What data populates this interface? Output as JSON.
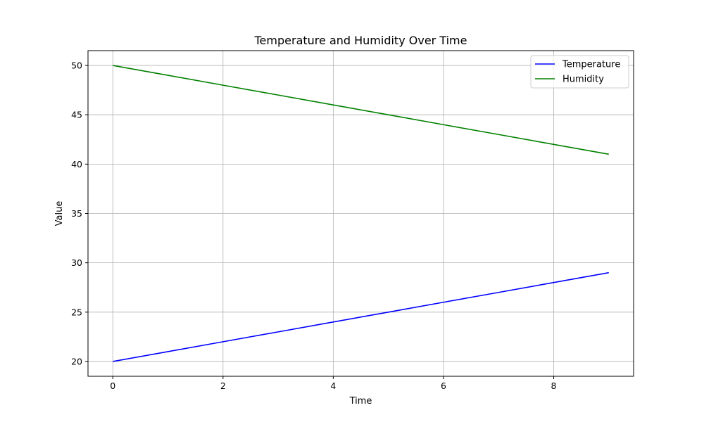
{
  "chart_data": {
    "type": "line",
    "title": "Temperature and Humidity Over Time",
    "xlabel": "Time",
    "ylabel": "Value",
    "x": [
      0,
      1,
      2,
      3,
      4,
      5,
      6,
      7,
      8,
      9
    ],
    "series": [
      {
        "name": "Temperature",
        "color": "#0000ff",
        "values": [
          20,
          21,
          22,
          23,
          24,
          25,
          26,
          27,
          28,
          29
        ]
      },
      {
        "name": "Humidity",
        "color": "#008000",
        "values": [
          50,
          49,
          48,
          47,
          46,
          45,
          44,
          43,
          42,
          41
        ]
      }
    ],
    "xlim": [
      -0.45,
      9.45
    ],
    "ylim": [
      18.5,
      51.5
    ],
    "xticks": [
      0,
      2,
      4,
      6,
      8
    ],
    "yticks": [
      20,
      25,
      30,
      35,
      40,
      45,
      50
    ],
    "grid": true,
    "legend_position": "top-right"
  }
}
